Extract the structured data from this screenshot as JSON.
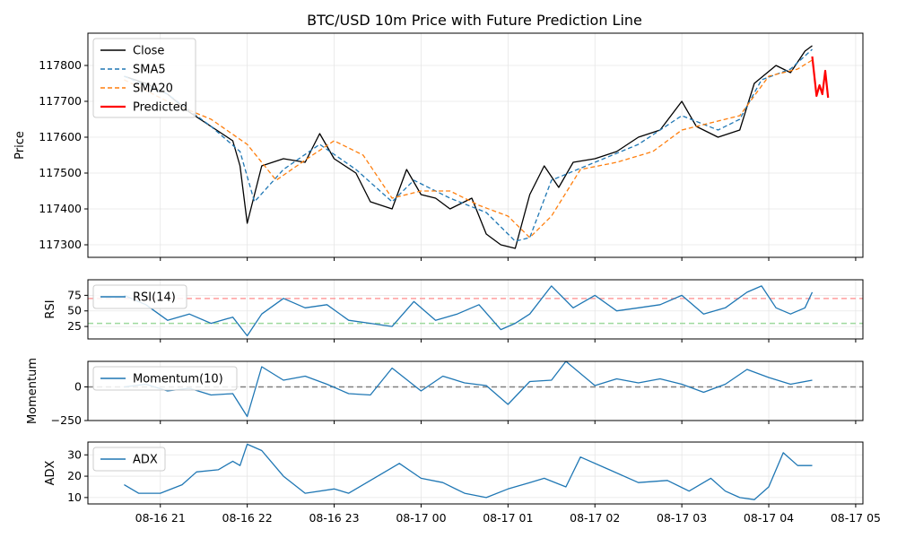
{
  "chart_data": [
    {
      "type": "line",
      "title": "BTC/USD 10m Price with Future Prediction Line",
      "ylabel": "Price",
      "ylim": [
        117265,
        117890
      ],
      "yticks": [
        117300,
        117400,
        117500,
        117600,
        117700,
        117800
      ],
      "ytick_labels": [
        "117300",
        "117400",
        "117500",
        "117600",
        "117700",
        "117800"
      ],
      "grid": true,
      "legend_position": "upper-left",
      "series": [
        {
          "name": "Close",
          "color": "#000000",
          "style": "solid",
          "x": [
            "2025-08-16 20:35",
            "2025-08-16 20:50",
            "2025-08-16 21:05",
            "2025-08-16 21:20",
            "2025-08-16 21:35",
            "2025-08-16 21:50",
            "2025-08-16 21:55",
            "2025-08-16 22:00",
            "2025-08-16 22:10",
            "2025-08-16 22:25",
            "2025-08-16 22:40",
            "2025-08-16 22:50",
            "2025-08-16 23:00",
            "2025-08-16 23:15",
            "2025-08-16 23:25",
            "2025-08-16 23:40",
            "2025-08-16 23:50",
            "2025-08-17 00:00",
            "2025-08-17 00:10",
            "2025-08-17 00:20",
            "2025-08-17 00:35",
            "2025-08-17 00:45",
            "2025-08-17 00:55",
            "2025-08-17 01:05",
            "2025-08-17 01:15",
            "2025-08-17 01:25",
            "2025-08-17 01:35",
            "2025-08-17 01:45",
            "2025-08-17 02:00",
            "2025-08-17 02:15",
            "2025-08-17 02:30",
            "2025-08-17 02:45",
            "2025-08-17 03:00",
            "2025-08-17 03:10",
            "2025-08-17 03:25",
            "2025-08-17 03:40",
            "2025-08-17 03:50",
            "2025-08-17 04:05",
            "2025-08-17 04:15",
            "2025-08-17 04:25",
            "2025-08-17 04:30"
          ],
          "values": [
            117770,
            117750,
            117720,
            117670,
            117630,
            117590,
            117520,
            117360,
            117520,
            117540,
            117530,
            117610,
            117540,
            117500,
            117420,
            117400,
            117510,
            117440,
            117430,
            117400,
            117430,
            117330,
            117300,
            117290,
            117440,
            117520,
            117460,
            117530,
            117540,
            117560,
            117600,
            117620,
            117700,
            117630,
            117600,
            117620,
            117750,
            117800,
            117780,
            117840,
            117855
          ]
        },
        {
          "name": "SMA5",
          "color": "#1f77b4",
          "style": "dashed",
          "x": [
            "2025-08-16 20:35",
            "2025-08-16 21:05",
            "2025-08-16 21:35",
            "2025-08-16 21:55",
            "2025-08-16 22:05",
            "2025-08-16 22:25",
            "2025-08-16 22:50",
            "2025-08-16 23:15",
            "2025-08-16 23:40",
            "2025-08-16 23:55",
            "2025-08-17 00:20",
            "2025-08-17 00:45",
            "2025-08-17 01:05",
            "2025-08-17 01:15",
            "2025-08-17 01:30",
            "2025-08-17 02:00",
            "2025-08-17 02:30",
            "2025-08-17 03:00",
            "2025-08-17 03:25",
            "2025-08-17 03:40",
            "2025-08-17 03:55",
            "2025-08-17 04:15",
            "2025-08-17 04:30"
          ],
          "values": [
            117770,
            117720,
            117630,
            117560,
            117420,
            117510,
            117580,
            117510,
            117420,
            117480,
            117430,
            117390,
            117310,
            117320,
            117480,
            117530,
            117580,
            117660,
            117620,
            117650,
            117760,
            117790,
            117845
          ]
        },
        {
          "name": "SMA20",
          "color": "#ff7f0e",
          "style": "dashed",
          "x": [
            "2025-08-16 20:35",
            "2025-08-16 21:05",
            "2025-08-16 21:35",
            "2025-08-16 22:00",
            "2025-08-16 22:20",
            "2025-08-16 22:45",
            "2025-08-16 23:00",
            "2025-08-16 23:20",
            "2025-08-16 23:40",
            "2025-08-17 00:00",
            "2025-08-17 00:20",
            "2025-08-17 00:40",
            "2025-08-17 01:00",
            "2025-08-17 01:15",
            "2025-08-17 01:30",
            "2025-08-17 01:50",
            "2025-08-17 02:15",
            "2025-08-17 02:40",
            "2025-08-17 03:00",
            "2025-08-17 03:20",
            "2025-08-17 03:40",
            "2025-08-17 04:00",
            "2025-08-17 04:20",
            "2025-08-17 04:30"
          ],
          "values": [
            117760,
            117700,
            117650,
            117580,
            117480,
            117550,
            117590,
            117550,
            117430,
            117450,
            117450,
            117410,
            117380,
            117320,
            117380,
            117510,
            117530,
            117560,
            117620,
            117640,
            117660,
            117770,
            117790,
            117815
          ]
        },
        {
          "name": "Predicted",
          "color": "#ff0000",
          "style": "solid",
          "x": [
            "2025-08-17 04:30",
            "2025-08-17 04:33",
            "2025-08-17 04:35",
            "2025-08-17 04:37",
            "2025-08-17 04:39",
            "2025-08-17 04:41"
          ],
          "values": [
            117825,
            117715,
            117745,
            117720,
            117785,
            117710
          ]
        }
      ]
    },
    {
      "type": "line",
      "ylabel": "RSI",
      "ylim": [
        5,
        100
      ],
      "yticks": [
        25,
        50,
        75
      ],
      "ytick_labels": [
        "25",
        "50",
        "75"
      ],
      "reference_lines": [
        {
          "value": 70,
          "color": "#ff9e9e"
        },
        {
          "value": 30,
          "color": "#9ed99e"
        }
      ],
      "grid": true,
      "legend_position": "upper-left",
      "series": [
        {
          "name": "RSI(14)",
          "color": "#1f77b4",
          "x": [
            "2025-08-16 20:35",
            "2025-08-16 20:50",
            "2025-08-16 21:05",
            "2025-08-16 21:20",
            "2025-08-16 21:35",
            "2025-08-16 21:50",
            "2025-08-16 22:00",
            "2025-08-16 22:10",
            "2025-08-16 22:25",
            "2025-08-16 22:40",
            "2025-08-16 22:55",
            "2025-08-16 23:10",
            "2025-08-16 23:25",
            "2025-08-16 23:40",
            "2025-08-16 23:55",
            "2025-08-17 00:10",
            "2025-08-17 00:25",
            "2025-08-17 00:40",
            "2025-08-17 00:55",
            "2025-08-17 01:05",
            "2025-08-17 01:15",
            "2025-08-17 01:30",
            "2025-08-17 01:45",
            "2025-08-17 02:00",
            "2025-08-17 02:15",
            "2025-08-17 02:30",
            "2025-08-17 02:45",
            "2025-08-17 03:00",
            "2025-08-17 03:15",
            "2025-08-17 03:30",
            "2025-08-17 03:45",
            "2025-08-17 03:55",
            "2025-08-17 04:05",
            "2025-08-17 04:15",
            "2025-08-17 04:25",
            "2025-08-17 04:30"
          ],
          "values": [
            75,
            60,
            35,
            45,
            30,
            40,
            10,
            45,
            70,
            55,
            60,
            35,
            30,
            25,
            65,
            35,
            45,
            60,
            20,
            30,
            45,
            90,
            55,
            75,
            50,
            55,
            60,
            75,
            45,
            55,
            80,
            90,
            55,
            45,
            55,
            80
          ]
        }
      ]
    },
    {
      "type": "line",
      "ylabel": "Momentum",
      "ylim": [
        -250,
        190
      ],
      "yticks": [
        -250,
        0
      ],
      "ytick_labels": [
        "−250",
        "0"
      ],
      "reference_lines": [
        {
          "value": 0,
          "color": "#808080"
        }
      ],
      "grid": true,
      "legend_position": "upper-left",
      "series": [
        {
          "name": "Momentum(10)",
          "color": "#1f77b4",
          "x": [
            "2025-08-16 20:35",
            "2025-08-16 20:50",
            "2025-08-16 21:05",
            "2025-08-16 21:20",
            "2025-08-16 21:35",
            "2025-08-16 21:50",
            "2025-08-16 22:00",
            "2025-08-16 22:10",
            "2025-08-16 22:25",
            "2025-08-16 22:40",
            "2025-08-16 22:55",
            "2025-08-16 23:10",
            "2025-08-16 23:25",
            "2025-08-16 23:40",
            "2025-08-17 00:00",
            "2025-08-17 00:15",
            "2025-08-17 00:30",
            "2025-08-17 00:45",
            "2025-08-17 01:00",
            "2025-08-17 01:15",
            "2025-08-17 01:30",
            "2025-08-17 01:40",
            "2025-08-17 02:00",
            "2025-08-17 02:15",
            "2025-08-17 02:30",
            "2025-08-17 02:45",
            "2025-08-17 03:00",
            "2025-08-17 03:15",
            "2025-08-17 03:30",
            "2025-08-17 03:45",
            "2025-08-17 04:00",
            "2025-08-17 04:15",
            "2025-08-17 04:30"
          ],
          "values": [
            0,
            20,
            -30,
            -10,
            -60,
            -50,
            -220,
            150,
            50,
            80,
            20,
            -50,
            -60,
            140,
            -30,
            80,
            30,
            10,
            -130,
            40,
            50,
            190,
            10,
            60,
            30,
            60,
            20,
            -40,
            20,
            130,
            70,
            20,
            50
          ]
        }
      ]
    },
    {
      "type": "line",
      "ylabel": "ADX",
      "ylim": [
        7,
        36
      ],
      "yticks": [
        10,
        20,
        30
      ],
      "ytick_labels": [
        "10",
        "20",
        "30"
      ],
      "grid": true,
      "legend_position": "upper-left",
      "series": [
        {
          "name": "ADX",
          "color": "#1f77b4",
          "x": [
            "2025-08-16 20:35",
            "2025-08-16 20:45",
            "2025-08-16 21:00",
            "2025-08-16 21:15",
            "2025-08-16 21:25",
            "2025-08-16 21:40",
            "2025-08-16 21:50",
            "2025-08-16 21:55",
            "2025-08-16 22:00",
            "2025-08-16 22:10",
            "2025-08-16 22:25",
            "2025-08-16 22:40",
            "2025-08-16 23:00",
            "2025-08-16 23:10",
            "2025-08-16 23:30",
            "2025-08-16 23:45",
            "2025-08-17 00:00",
            "2025-08-17 00:15",
            "2025-08-17 00:30",
            "2025-08-17 00:45",
            "2025-08-17 01:00",
            "2025-08-17 01:15",
            "2025-08-17 01:25",
            "2025-08-17 01:40",
            "2025-08-17 01:50",
            "2025-08-17 02:10",
            "2025-08-17 02:30",
            "2025-08-17 02:50",
            "2025-08-17 03:05",
            "2025-08-17 03:20",
            "2025-08-17 03:30",
            "2025-08-17 03:40",
            "2025-08-17 03:50",
            "2025-08-17 04:00",
            "2025-08-17 04:10",
            "2025-08-17 04:20",
            "2025-08-17 04:30"
          ],
          "values": [
            16,
            12,
            12,
            16,
            22,
            23,
            27,
            25,
            35,
            32,
            20,
            12,
            14,
            12,
            20,
            26,
            19,
            17,
            12,
            10,
            14,
            17,
            19,
            15,
            29,
            23,
            17,
            18,
            13,
            19,
            13,
            10,
            9,
            15,
            31,
            25,
            25
          ]
        }
      ]
    }
  ],
  "x_axis": {
    "range": [
      "2025-08-16 20:10",
      "2025-08-17 05:05"
    ],
    "ticks": [
      "2025-08-16 21:00",
      "2025-08-16 22:00",
      "2025-08-16 23:00",
      "2025-08-17 00:00",
      "2025-08-17 01:00",
      "2025-08-17 02:00",
      "2025-08-17 03:00",
      "2025-08-17 04:00",
      "2025-08-17 05:00"
    ],
    "tick_labels": [
      "08-16 21",
      "08-16 22",
      "08-16 23",
      "08-17 00",
      "08-17 01",
      "08-17 02",
      "08-17 03",
      "08-17 04",
      "08-17 05"
    ]
  }
}
